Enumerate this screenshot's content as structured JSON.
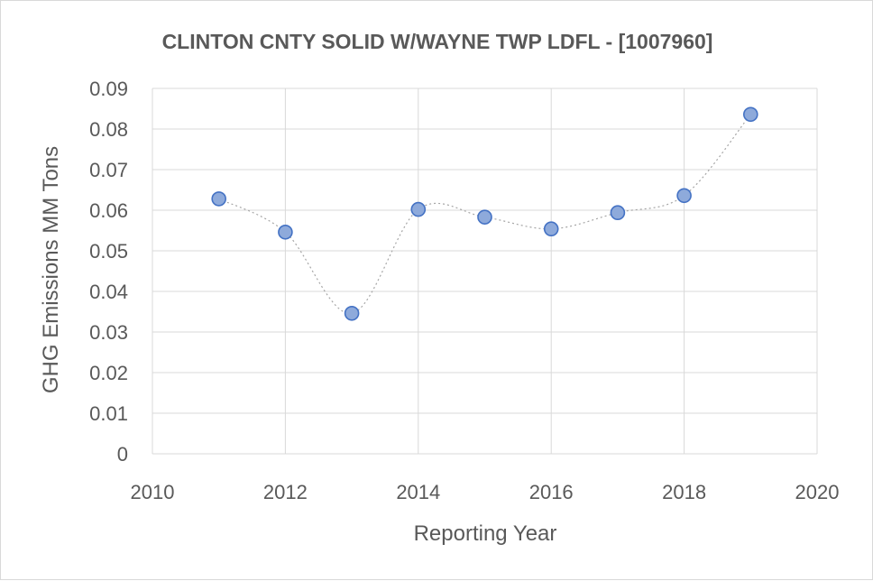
{
  "chart_data": {
    "type": "scatter",
    "title": "CLINTON CNTY SOLID W/WAYNE TWP LDFL - [1007960]",
    "xlabel": "Reporting Year",
    "ylabel": "GHG Emissions MM Tons",
    "xlim": [
      2010,
      2020
    ],
    "ylim": [
      0,
      0.09
    ],
    "x_ticks": [
      2010,
      2012,
      2014,
      2016,
      2018,
      2020
    ],
    "x_tick_labels": [
      "2010",
      "2012",
      "2014",
      "2016",
      "2018",
      "2020"
    ],
    "y_ticks": [
      0,
      0.01,
      0.02,
      0.03,
      0.04,
      0.05,
      0.06,
      0.07,
      0.08,
      0.09
    ],
    "y_tick_labels": [
      "0",
      "0.01",
      "0.02",
      "0.03",
      "0.04",
      "0.05",
      "0.06",
      "0.07",
      "0.08",
      "0.09"
    ],
    "grid": true,
    "smoothed_trend_line": true,
    "series": [
      {
        "name": "GHG Emissions",
        "x": [
          2011,
          2012,
          2013,
          2014,
          2015,
          2016,
          2017,
          2018,
          2019
        ],
        "values": [
          0.0628,
          0.0546,
          0.0346,
          0.0602,
          0.0583,
          0.0554,
          0.0594,
          0.0636,
          0.0836
        ]
      }
    ],
    "colors": {
      "marker_fill": "#8eaadb",
      "marker_stroke": "#4472c4",
      "trend_line": "#a6a6a6",
      "grid": "#d9d9d9",
      "text": "#595959"
    }
  }
}
